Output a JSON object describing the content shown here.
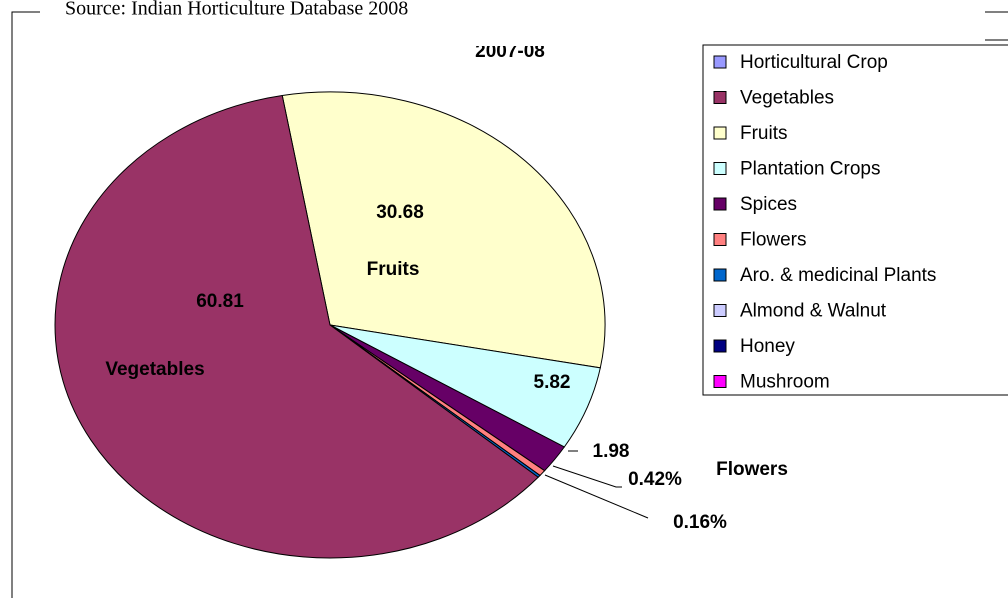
{
  "chart_data": {
    "type": "pie",
    "title": "2007-08",
    "source": "Source: Indian Horticulture Database 2008",
    "categories": [
      "Horticultural Crop",
      "Vegetables",
      "Fruits",
      "Plantation Crops",
      "Spices",
      "Flowers",
      "Aro. & medicinal Plants",
      "Almond & Walnut",
      "Honey",
      "Mushroom"
    ],
    "values": [
      null,
      60.81,
      30.68,
      5.82,
      1.98,
      0.42,
      0.16,
      null,
      null,
      null
    ],
    "value_labels": [
      null,
      "60.81",
      "30.68",
      "5.82",
      "1.98",
      "0.42%",
      "0.16%",
      null,
      null,
      null
    ],
    "colors": [
      "#9999ff",
      "#993366",
      "#ffffcc",
      "#ccffff",
      "#660066",
      "#ff8080",
      "#0066cc",
      "#ccccff",
      "#000080",
      "#ff00ff"
    ],
    "legend": "right"
  }
}
